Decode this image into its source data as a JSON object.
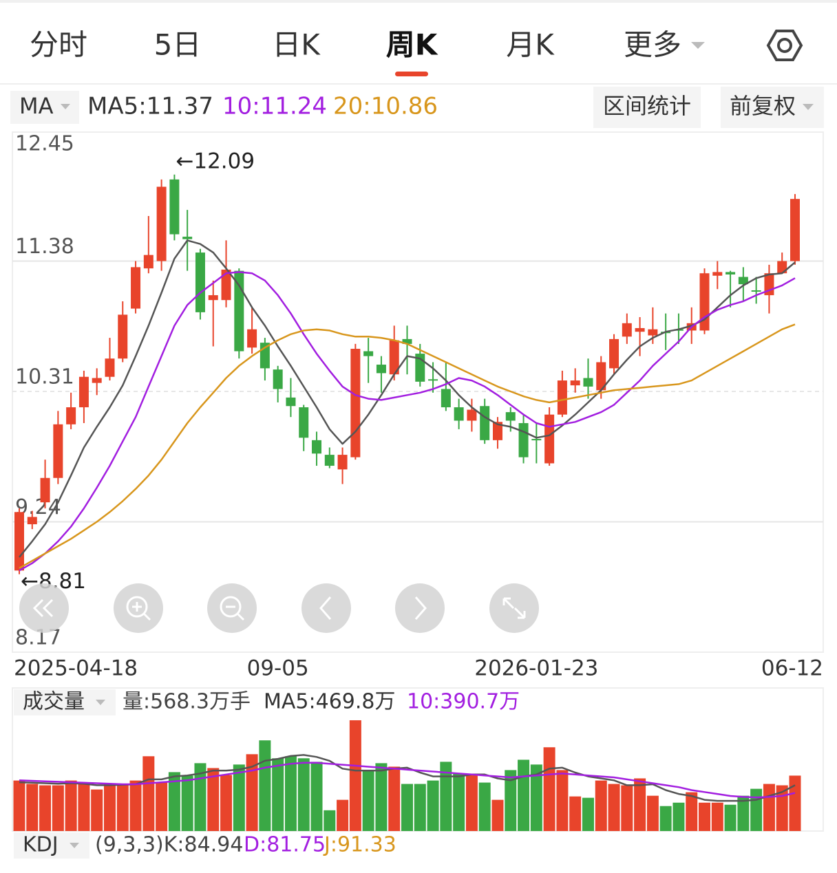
{
  "tabs": [
    {
      "label": "分时"
    },
    {
      "label": "5日"
    },
    {
      "label": "日K"
    },
    {
      "label": "周K",
      "selected": true
    },
    {
      "label": "月K"
    },
    {
      "label": "更多"
    }
  ],
  "indicator_bar": {
    "selector": "MA",
    "buttons": [
      "区间统计",
      "前复权"
    ]
  },
  "chart_data": [
    {
      "type": "candlestick",
      "categories": [
        "2025-04-18",
        null,
        null,
        null,
        null,
        null,
        null,
        null,
        null,
        null,
        null,
        null,
        null,
        null,
        null,
        null,
        null,
        null,
        null,
        null,
        "09-05",
        null,
        null,
        null,
        null,
        null,
        null,
        null,
        null,
        null,
        null,
        null,
        null,
        null,
        null,
        null,
        null,
        null,
        null,
        null,
        "2026-01-23",
        null,
        null,
        null,
        null,
        null,
        null,
        null,
        null,
        null,
        null,
        null,
        null,
        null,
        null,
        null,
        null,
        null,
        null,
        null,
        "06-12"
      ],
      "open": [
        8.84,
        9.22,
        9.4,
        9.6,
        10.04,
        10.18,
        10.38,
        10.43,
        10.58,
        10.99,
        11.32,
        11.38,
        12.05,
        11.58,
        11.45,
        11.06,
        11.06,
        11.3,
        10.67,
        10.71,
        10.49,
        10.26,
        10.18,
        9.91,
        9.79,
        9.67,
        9.77,
        10.64,
        10.53,
        10.45,
        10.74,
        10.62,
        10.41,
        10.33,
        10.18,
        10.07,
        10.19,
        9.91,
        10.14,
        10.05,
        9.92,
        9.72,
        10.12,
        10.36,
        10.42,
        10.32,
        10.5,
        10.76,
        10.8,
        10.77,
        10.8,
        10.82,
        10.81,
        10.81,
        11.26,
        11.29,
        11.25,
        11.14,
        11.1,
        11.28,
        11.38
      ],
      "high": [
        9.35,
        9.33,
        9.75,
        10.15,
        10.3,
        10.48,
        10.5,
        10.75,
        11.05,
        11.38,
        11.75,
        12.05,
        12.09,
        11.8,
        11.48,
        11.22,
        11.55,
        11.32,
        11.0,
        10.75,
        10.52,
        10.42,
        10.2,
        9.98,
        9.85,
        9.85,
        10.7,
        10.75,
        10.6,
        10.85,
        10.85,
        10.7,
        10.55,
        10.55,
        10.25,
        10.25,
        10.25,
        10.1,
        10.18,
        10.12,
        10.05,
        10.18,
        10.48,
        10.5,
        10.58,
        10.6,
        10.78,
        10.95,
        10.92,
        11.0,
        10.95,
        10.95,
        11.0,
        11.32,
        11.38,
        11.3,
        11.33,
        11.25,
        11.35,
        11.45,
        11.93
      ],
      "low": [
        8.81,
        9.18,
        9.35,
        9.55,
        10.0,
        10.05,
        10.28,
        10.4,
        10.55,
        10.95,
        11.28,
        11.3,
        11.55,
        11.3,
        10.9,
        10.68,
        11.0,
        10.58,
        10.62,
        10.4,
        10.22,
        10.1,
        9.82,
        9.7,
        9.68,
        9.55,
        9.75,
        10.38,
        10.3,
        10.4,
        10.45,
        10.35,
        10.3,
        10.15,
        10.0,
        9.98,
        9.88,
        9.84,
        9.98,
        9.72,
        9.72,
        9.7,
        10.1,
        10.3,
        10.25,
        10.25,
        10.45,
        10.7,
        10.6,
        10.7,
        10.65,
        10.7,
        10.7,
        10.78,
        11.15,
        11.0,
        11.05,
        11.03,
        10.95,
        11.28,
        11.35
      ],
      "close": [
        9.32,
        9.28,
        9.6,
        10.04,
        10.18,
        10.43,
        10.42,
        10.58,
        10.94,
        11.33,
        11.43,
        11.99,
        11.6,
        11.56,
        10.96,
        11.1,
        11.31,
        10.64,
        10.82,
        10.5,
        10.33,
        10.19,
        9.93,
        9.8,
        9.7,
        9.79,
        10.66,
        10.6,
        10.46,
        10.73,
        10.7,
        10.39,
        10.4,
        10.18,
        10.07,
        10.16,
        9.91,
        10.06,
        10.07,
        9.77,
        9.91,
        10.12,
        10.4,
        10.4,
        10.35,
        10.55,
        10.74,
        10.87,
        10.83,
        10.82,
        10.79,
        10.81,
        10.87,
        11.28,
        11.29,
        11.27,
        11.19,
        11.13,
        11.28,
        11.38,
        11.89
      ],
      "up_color": "#e8442b",
      "down_color": "#3aa845",
      "ylim": [
        8.17,
        12.45
      ],
      "yticks": [
        12.45,
        11.38,
        10.31,
        9.24,
        8.17
      ],
      "grid": true,
      "lines": [
        {
          "name": "MA5:11.37",
          "color": "#555555",
          "values": [
            8.95,
            9.08,
            9.22,
            9.4,
            9.62,
            9.85,
            10.02,
            10.18,
            10.36,
            10.6,
            10.85,
            11.12,
            11.4,
            11.55,
            11.52,
            11.45,
            11.32,
            11.18,
            11.0,
            10.85,
            10.68,
            10.52,
            10.35,
            10.18,
            10.0,
            9.88,
            9.98,
            10.12,
            10.28,
            10.45,
            10.6,
            10.58,
            10.5,
            10.4,
            10.28,
            10.18,
            10.1,
            10.04,
            10.02,
            9.98,
            9.93,
            9.95,
            10.03,
            10.12,
            10.22,
            10.32,
            10.45,
            10.57,
            10.68,
            10.75,
            10.8,
            10.82,
            10.85,
            10.9,
            11.0,
            11.1,
            11.18,
            11.24,
            11.27,
            11.28,
            11.37
          ]
        },
        {
          "name": "10:11.24",
          "color": "#a21ee0",
          "values": [
            8.84,
            8.9,
            8.98,
            9.08,
            9.2,
            9.35,
            9.52,
            9.7,
            9.9,
            10.1,
            10.35,
            10.6,
            10.85,
            11.02,
            11.12,
            11.2,
            11.28,
            11.29,
            11.28,
            11.22,
            11.1,
            10.95,
            10.78,
            10.62,
            10.48,
            10.35,
            10.28,
            10.25,
            10.24,
            10.26,
            10.28,
            10.3,
            10.33,
            10.37,
            10.42,
            10.4,
            10.35,
            10.28,
            10.2,
            10.12,
            10.05,
            10.02,
            10.04,
            10.06,
            10.1,
            10.14,
            10.2,
            10.3,
            10.4,
            10.52,
            10.62,
            10.72,
            10.84,
            10.92,
            10.98,
            11.02,
            11.05,
            11.1,
            11.14,
            11.18,
            11.24
          ]
        },
        {
          "name": "20:10.86",
          "color": "#d8961c",
          "values": [
            8.86,
            8.92,
            8.98,
            9.04,
            9.1,
            9.17,
            9.24,
            9.32,
            9.41,
            9.51,
            9.62,
            9.75,
            9.9,
            10.05,
            10.18,
            10.3,
            10.42,
            10.52,
            10.6,
            10.67,
            10.73,
            10.78,
            10.81,
            10.82,
            10.81,
            10.78,
            10.76,
            10.76,
            10.75,
            10.73,
            10.7,
            10.65,
            10.6,
            10.55,
            10.5,
            10.45,
            10.4,
            10.35,
            10.31,
            10.27,
            10.24,
            10.22,
            10.24,
            10.26,
            10.28,
            10.3,
            10.32,
            10.33,
            10.34,
            10.35,
            10.36,
            10.37,
            10.4,
            10.46,
            10.52,
            10.58,
            10.64,
            10.7,
            10.76,
            10.82,
            10.86
          ]
        }
      ],
      "annotations": [
        {
          "text": "←12.09",
          "value": 12.09
        },
        {
          "text": "←8.81",
          "value": 8.81
        }
      ]
    },
    {
      "type": "bar",
      "title": "成交量",
      "volume_text": "量:568.3万手",
      "values": [
        518,
        483,
        469,
        469,
        518,
        483,
        426,
        483,
        483,
        518,
        767,
        497,
        604,
        568,
        696,
        646,
        575,
        682,
        788,
        930,
        746,
        767,
        746,
        710,
        213,
        320,
        1136,
        625,
        696,
        660,
        483,
        483,
        518,
        710,
        589,
        589,
        497,
        320,
        625,
        731,
        682,
        859,
        625,
        355,
        341,
        518,
        483,
        469,
        540,
        362,
        256,
        291,
        398,
        291,
        291,
        270,
        362,
        433,
        483,
        469,
        568.3
      ],
      "ylim": [
        0,
        1150
      ],
      "lines": [
        {
          "name": "MA5:469.8万",
          "color": "#555555",
          "values": [
            500,
            495,
            490,
            485,
            490,
            485,
            470,
            470,
            475,
            480,
            530,
            530,
            560,
            570,
            590,
            620,
            620,
            630,
            660,
            720,
            740,
            770,
            780,
            760,
            720,
            640,
            620,
            620,
            620,
            640,
            650,
            600,
            560,
            560,
            560,
            580,
            580,
            540,
            520,
            560,
            580,
            640,
            650,
            600,
            560,
            540,
            520,
            470,
            470,
            480,
            420,
            380,
            360,
            320,
            310,
            310,
            310,
            320,
            360,
            400,
            469.8
          ]
        },
        {
          "name": "10:390.7万",
          "color": "#a21ee0",
          "values": [
            520,
            515,
            510,
            505,
            500,
            495,
            490,
            485,
            480,
            480,
            490,
            500,
            510,
            520,
            540,
            560,
            580,
            600,
            620,
            650,
            670,
            690,
            700,
            700,
            690,
            680,
            670,
            660,
            650,
            640,
            630,
            620,
            610,
            600,
            590,
            580,
            570,
            560,
            550,
            560,
            570,
            580,
            590,
            580,
            570,
            560,
            550,
            530,
            510,
            490,
            470,
            450,
            420,
            400,
            380,
            360,
            350,
            345,
            350,
            360,
            390.7
          ]
        }
      ]
    }
  ],
  "kdj": {
    "title": "KDJ",
    "items": [
      {
        "text": "(9,3,3)K:84.94",
        "color": "#444444"
      },
      {
        "text": "D:81.75",
        "color": "#a21ee0"
      },
      {
        "text": "J:91.33",
        "color": "#d8961c"
      }
    ]
  }
}
